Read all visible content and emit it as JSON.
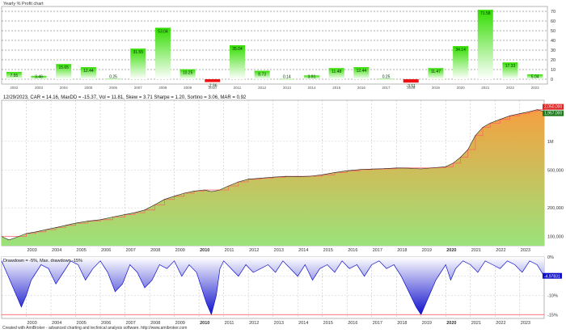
{
  "footer": "Created with AmiBroker - advanced charting and technical analysis software. http://www.amibroker.com",
  "chart_data": [
    {
      "type": "bar",
      "title": "Yearly % Profit chart",
      "categories": [
        "2002",
        "2003",
        "2004",
        "2005",
        "2006",
        "2007",
        "2008",
        "2009",
        "2010",
        "2011",
        "2012",
        "2013",
        "2014",
        "2015",
        "2016",
        "2017",
        "2018",
        "2019",
        "2020",
        "2021",
        "2022",
        "2023"
      ],
      "values": [
        7.55,
        3.46,
        15.65,
        12.44,
        0.25,
        31.55,
        53.04,
        10.25,
        -2.96,
        35.04,
        8.73,
        0.14,
        3.91,
        11.48,
        12.44,
        0.25,
        -3.51,
        11.47,
        34.14,
        71.58,
        17.33,
        5.04
      ],
      "value_labels": [
        "7.55",
        "3.46",
        "15.65",
        "12.44",
        "0.25",
        "31.55",
        "53.04",
        "10.25",
        "-2.96",
        "35.04",
        "8.73",
        "0.14",
        "3.91",
        "11.48",
        "12.44",
        "0.25",
        "-3.51",
        "11.47",
        "34.14",
        "71.58",
        "17.33",
        "5.04"
      ],
      "yticks": [
        "0",
        "10",
        "20",
        "30",
        "40",
        "50",
        "60",
        "70"
      ],
      "ylim": [
        -5,
        75
      ],
      "colors": {
        "positive": "#33dd00",
        "negative": "#ee1111",
        "grid": "#333333"
      }
    },
    {
      "type": "area",
      "title": "12/29/2023, CAR = 14.16, MaxDD = -15.37, Vol = 11.81, Skew = 3.71 Sharpe = 1.20, Sortino = 3.06, MAR = 0.92",
      "scale": "log",
      "ylim": [
        80000,
        2700000
      ],
      "yticks": [
        {
          "label": "1M",
          "value": 1000000
        },
        {
          "label": "500,000",
          "value": 500000
        },
        {
          "label": "200,000",
          "value": 200000
        },
        {
          "label": "100,000",
          "value": 100000
        }
      ],
      "xticks": [
        "2003",
        "2004",
        "2005",
        "2006",
        "2007",
        "2008",
        "2009",
        "2010",
        "2011",
        "2012",
        "2013",
        "2014",
        "2015",
        "2016",
        "2017",
        "2018",
        "2019",
        "2020",
        "2021",
        "2022",
        "2023"
      ],
      "x": [
        2002.0,
        2002.3,
        2002.6,
        2003.0,
        2003.4,
        2003.8,
        2004.2,
        2004.6,
        2005.0,
        2005.5,
        2006.0,
        2006.5,
        2007.0,
        2007.4,
        2007.8,
        2008.2,
        2008.6,
        2009.0,
        2009.4,
        2009.8,
        2010.2,
        2010.5,
        2010.8,
        2011.2,
        2011.6,
        2012.0,
        2012.5,
        2013.0,
        2013.5,
        2014.0,
        2014.5,
        2015.0,
        2015.5,
        2016.0,
        2016.5,
        2017.0,
        2017.5,
        2018.0,
        2018.5,
        2019.0,
        2019.5,
        2020.0,
        2020.3,
        2020.6,
        2020.9,
        2021.2,
        2021.5,
        2021.8,
        2022.2,
        2022.6,
        2023.0,
        2023.4,
        2023.7,
        2023.99
      ],
      "values": [
        100000,
        92000,
        98000,
        107500,
        112000,
        118000,
        124000,
        131000,
        138000,
        145000,
        150000,
        160000,
        170000,
        178000,
        190000,
        215000,
        245000,
        265000,
        285000,
        300000,
        308000,
        296000,
        305000,
        340000,
        375000,
        400000,
        410000,
        420000,
        428000,
        425000,
        430000,
        445000,
        470000,
        490000,
        505000,
        510000,
        515000,
        525000,
        522000,
        512000,
        528000,
        540000,
        590000,
        680000,
        820000,
        1150000,
        1400000,
        1550000,
        1700000,
        1850000,
        1950000,
        2050000,
        2150000,
        2050000
      ],
      "labels": [
        "2,050,000",
        "1,957,000"
      ],
      "colors": {
        "top": "#f5a040",
        "bottom": "#9be27a",
        "line": "#222222",
        "highwater": "#ff6666"
      }
    },
    {
      "type": "area",
      "title": "Drawdown = -5%, Max. drawdown -15%",
      "ylim": [
        -16,
        0
      ],
      "yticks": [
        {
          "label": "0%",
          "value": 0
        },
        {
          "label": "-5%",
          "value": -5
        },
        {
          "label": "-10%",
          "value": -10
        },
        {
          "label": "-15%",
          "value": -15
        }
      ],
      "xticks": [
        "2003",
        "2004",
        "2005",
        "2006",
        "2007",
        "2008",
        "2009",
        "2010",
        "2011",
        "2012",
        "2013",
        "2014",
        "2015",
        "2016",
        "2017",
        "2018",
        "2019",
        "2020",
        "2021",
        "2022",
        "2023"
      ],
      "x": [
        2002.0,
        2002.2,
        2002.4,
        2002.6,
        2002.8,
        2003.0,
        2003.2,
        2003.4,
        2003.6,
        2003.9,
        2004.2,
        2004.5,
        2004.8,
        2005.1,
        2005.4,
        2005.7,
        2006.0,
        2006.3,
        2006.6,
        2006.9,
        2007.2,
        2007.5,
        2007.8,
        2008.1,
        2008.4,
        2008.7,
        2009.0,
        2009.3,
        2009.6,
        2009.9,
        2010.1,
        2010.3,
        2010.5,
        2010.7,
        2010.85,
        2011.0,
        2011.3,
        2011.6,
        2011.9,
        2012.2,
        2012.5,
        2012.8,
        2013.1,
        2013.4,
        2013.7,
        2014.0,
        2014.3,
        2014.6,
        2014.9,
        2015.2,
        2015.5,
        2015.8,
        2016.1,
        2016.4,
        2016.7,
        2017.0,
        2017.3,
        2017.6,
        2017.9,
        2018.2,
        2018.5,
        2018.8,
        2019.0,
        2019.2,
        2019.4,
        2019.6,
        2019.8,
        2020.0,
        2020.2,
        2020.4,
        2020.7,
        2021.0,
        2021.3,
        2021.6,
        2021.9,
        2022.2,
        2022.5,
        2022.8,
        2023.1,
        2023.4,
        2023.7,
        2023.99
      ],
      "values": [
        -1,
        -4,
        -7,
        -10,
        -13,
        -10,
        -6,
        -4,
        -2,
        -3,
        -7,
        -4,
        -1,
        -2,
        -6,
        -3,
        -1,
        -4,
        -9,
        -7,
        -2,
        -4,
        -8,
        -6,
        -2,
        -3,
        -1,
        -5,
        -2,
        -4,
        -8,
        -12,
        -15,
        -10,
        -3,
        -1,
        -3,
        -5,
        -2,
        -4,
        -3,
        -2,
        -4,
        -1,
        -3,
        -5,
        -2,
        -6,
        -3,
        -2,
        -4,
        -1,
        -3,
        -2,
        -5,
        -2,
        -1,
        -3,
        -2,
        -5,
        -9,
        -13,
        -15,
        -12,
        -9,
        -6,
        -4,
        -2,
        -6,
        -3,
        -1,
        -2,
        -4,
        -1,
        -2,
        -3,
        -1,
        -2,
        -4,
        -1,
        -2,
        -5
      ],
      "labels": [
        "-4.97831"
      ],
      "colors": {
        "top": "#ffffff",
        "bottom": "#1111cc",
        "line": "#1111cc",
        "maxline": "#ff4444"
      }
    }
  ]
}
